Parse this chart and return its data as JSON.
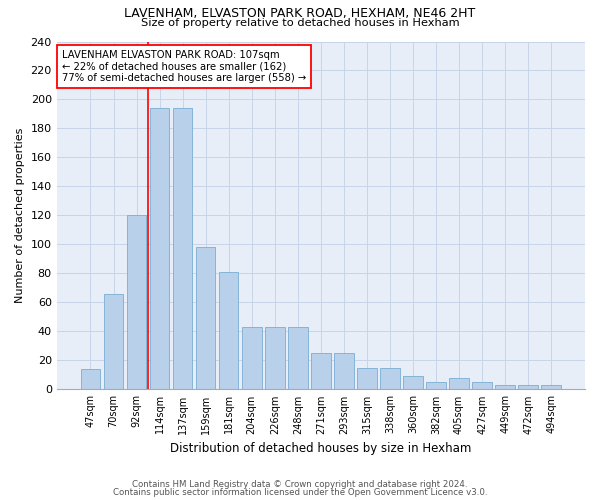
{
  "title1": "LAVENHAM, ELVASTON PARK ROAD, HEXHAM, NE46 2HT",
  "title2": "Size of property relative to detached houses in Hexham",
  "xlabel": "Distribution of detached houses by size in Hexham",
  "ylabel": "Number of detached properties",
  "categories": [
    "47sqm",
    "70sqm",
    "92sqm",
    "114sqm",
    "137sqm",
    "159sqm",
    "181sqm",
    "204sqm",
    "226sqm",
    "248sqm",
    "271sqm",
    "293sqm",
    "315sqm",
    "338sqm",
    "360sqm",
    "382sqm",
    "405sqm",
    "427sqm",
    "449sqm",
    "472sqm",
    "494sqm"
  ],
  "values": [
    14,
    66,
    120,
    194,
    194,
    98,
    81,
    43,
    43,
    43,
    25,
    25,
    15,
    15,
    9,
    5,
    8,
    5,
    3,
    3,
    3
  ],
  "bar_color": "#b8d0ea",
  "bar_edge_color": "#7aadd4",
  "grid_color": "#c8d4e8",
  "bg_color": "#e8eef8",
  "red_line_x": 2.5,
  "annotation_line1": "LAVENHAM ELVASTON PARK ROAD: 107sqm",
  "annotation_line2": "← 22% of detached houses are smaller (162)",
  "annotation_line3": "77% of semi-detached houses are larger (558) →",
  "footer1": "Contains HM Land Registry data © Crown copyright and database right 2024.",
  "footer2": "Contains public sector information licensed under the Open Government Licence v3.0.",
  "ylim": [
    0,
    240
  ],
  "yticks": [
    0,
    20,
    40,
    60,
    80,
    100,
    120,
    140,
    160,
    180,
    200,
    220,
    240
  ]
}
